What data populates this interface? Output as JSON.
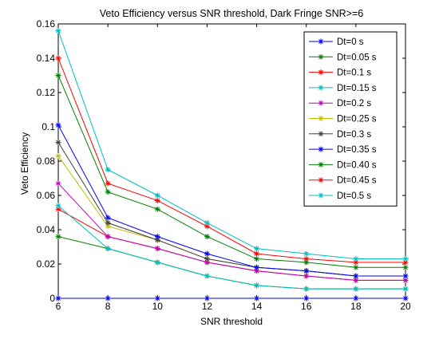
{
  "chart_data": {
    "type": "line",
    "title": "Veto Efficiency versus SNR threshold, Dark Fringe SNR>=6",
    "xlabel": "SNR threshold",
    "ylabel": "Veto Efficiency",
    "xlim": [
      6,
      20
    ],
    "ylim": [
      0,
      0.16
    ],
    "x": [
      6,
      8,
      10,
      12,
      14,
      16,
      18,
      20
    ],
    "xticks": [
      "6",
      "8",
      "10",
      "12",
      "14",
      "16",
      "18",
      "20"
    ],
    "yticks": [
      {
        "v": 0,
        "label": "0"
      },
      {
        "v": 0.02,
        "label": "0.02"
      },
      {
        "v": 0.04,
        "label": "0.04"
      },
      {
        "v": 0.06,
        "label": "0.06"
      },
      {
        "v": 0.08,
        "label": "0.08"
      },
      {
        "v": 0.1,
        "label": "0.1"
      },
      {
        "v": 0.12,
        "label": "0.12"
      },
      {
        "v": 0.14,
        "label": "0.14"
      },
      {
        "v": 0.16,
        "label": "0.16"
      }
    ],
    "grid": false,
    "legend_position": "top-right",
    "marker": "star",
    "series": [
      {
        "name": "Dt=0 s",
        "color": "#0000ff",
        "values": [
          0,
          0,
          0,
          0,
          0,
          0,
          0,
          0
        ]
      },
      {
        "name": "Dt=0.05 s",
        "color": "#008000",
        "values": [
          0.036,
          0.029,
          0.021,
          0.013,
          0.0075,
          0.0055,
          0.0055,
          0.0055
        ]
      },
      {
        "name": "Dt=0.1 s",
        "color": "#ff0000",
        "values": [
          0.052,
          0.036,
          0.029,
          0.021,
          0.016,
          0.013,
          0.0105,
          0.0105
        ]
      },
      {
        "name": "Dt=0.15 s",
        "color": "#00bfbf",
        "values": [
          0.054,
          0.029,
          0.021,
          0.013,
          0.0075,
          0.0055,
          0.0055,
          0.0055
        ]
      },
      {
        "name": "Dt=0.2 s",
        "color": "#bf00bf",
        "values": [
          0.067,
          0.036,
          0.029,
          0.021,
          0.016,
          0.013,
          0.0105,
          0.0105
        ]
      },
      {
        "name": "Dt=0.25 s",
        "color": "#bfbf00",
        "values": [
          0.083,
          0.042,
          0.034,
          0.023,
          0.018,
          0.016,
          0.013,
          0.013
        ]
      },
      {
        "name": "Dt=0.3 s",
        "color": "#404040",
        "values": [
          0.091,
          0.044,
          0.034,
          0.023,
          0.018,
          0.016,
          0.013,
          0.013
        ]
      },
      {
        "name": "Dt=0.35 s",
        "color": "#0000ff",
        "values": [
          0.101,
          0.047,
          0.036,
          0.026,
          0.018,
          0.016,
          0.013,
          0.013
        ]
      },
      {
        "name": "Dt=0.40 s",
        "color": "#008000",
        "values": [
          0.13,
          0.062,
          0.052,
          0.036,
          0.023,
          0.021,
          0.018,
          0.018
        ]
      },
      {
        "name": "Dt=0.45 s",
        "color": "#ff0000",
        "values": [
          0.14,
          0.067,
          0.057,
          0.042,
          0.026,
          0.023,
          0.021,
          0.021
        ]
      },
      {
        "name": "Dt=0.5 s",
        "color": "#00bfbf",
        "values": [
          0.156,
          0.075,
          0.06,
          0.044,
          0.029,
          0.026,
          0.023,
          0.023
        ]
      }
    ]
  }
}
